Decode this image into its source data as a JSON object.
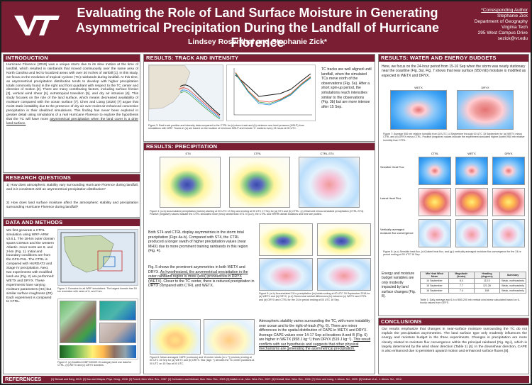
{
  "header": {
    "title_line1": "Evaluating the Role of Land Surface Moisture in Generating",
    "title_line2": "Asymmetrical Precipitation During the Landfall of Hurricane Florence",
    "authors": "Lindsey Rosenthal and Stephanie Zick*",
    "contact": [
      "*Corresponding Author",
      "Stephanie Zick",
      "Department of Geography",
      "Virginia Tech",
      "295 West Campus Drive",
      "sezick@vt.edu"
    ],
    "logo_text": "VT"
  },
  "introduction": {
    "heading": "INTRODUCTION",
    "text": "Hurricane Florence (2018) was a unique storm due to its slow motion at the time of landfall, which resulted in rainbands that moved continuously over the same area of North Carolina and led to localized areas with over 30 inches of rainfall [1]. In this study, we focus on the evolution of tropical cyclone (TC) rainbands during landfall. At this time, an asymmetrical precipitation distribution tends to develop with higher precipitation totals commonly found in the right and front quadrant with respect to the TC center and direction of motion [2]. There are many contributing factors, including surface friction [3], vertical wind shear [4], extratropical transition [5], and dry air intrusion [6]. This study focuses on the role of the land surface, which means decreased availability of moisture compared with the ocean surface [7]. Chen and Liang (2020) [7] argue that moist static instability due to the presence of dry air over moist air enhanced convective precipitation in their idealized simulations. This finding has never been explored in greater detail using simulations of a real Hurricane Florence to explore the hypothesis that the TC will have more",
    "text_underlined": "asymmetrical precipitation when the land cover is a drier land surface."
  },
  "research_questions": {
    "heading": "RESEARCH QUESTIONS",
    "items": [
      "1) How does atmospheric stability vary surrounding Hurricane Florence during landfall, and is it consistent with an asymmetrical precipitation distribution?",
      "2) How does land surface moisture affect the atmospheric stability and precipitation surrounding Hurricane Florence during landfall?"
    ]
  },
  "data_methods": {
    "heading": "DATA AND METHODS",
    "text1": "We first generate a CTRL simulation using WRF-ARW v3.6.1. The 18-km outer domain spans CONUS and the western Atlantic. Inner nests are 6- and 2-km (Fig. 1). Initial and boundary conditions are from the GFS-FNL. The CTRL is compared with HURDAT2 and Stage IV precipitation. Next, two experiments with modified land use (Fig. 2) are performed: WETX and DRYX. These experiments have varying moisture parameters (HS) but similar surface roughness (Z0). Each experiment is compared to CTRL.",
    "fig1_caption": "Figure 1: Domains for all WRF simulations. The largest domain has 18 km resolution with nests of 6- and 2-km.",
    "fig2_caption": "Figure 2: (a) Modified IGBP MODIS 20-category land use data for CTRL, (b) WETX and (c) DRYX domains."
  },
  "track_intensity": {
    "heading": "RESULTS: TRACK AND INTENSITY",
    "text": "TC tracks are well aligned until landfall, when the simulated TCs move north of the observations (Fig. 3a). After a short spin-up period, the simulations reach intensities similar to the observations (Fig. 3b) but are more intense after 15 Sep.",
    "fig3_caption": "Figure 3: Best track position and intensity data compared to the CTRL for (a) storm track and (b) minimum sea level pressure (MSLP) from simulations with WRF. Tracks in (a) are based on the location of minimum MSLP and include 'X' markers every 24 hours at 00 UTC."
  },
  "results_mid": {
    "heading": "RESULTS: PRECIPITATION",
    "panel_labels": [
      "ST4",
      "CTRL",
      "CTRL-ST4"
    ],
    "fig4_caption": "Figure 4: (a-b) Accumulated precipitation (inches) starting at 00 UTC 13 Sep and ending at 00 UTC 17 Sep for (a) ST4 and (b) CTRL. (c) Observed minus simulated precipitation (CTRL-ST4). Positive (negative) values indicate the CTRL simulated more (less) rainfall than ST4. In (a-b), the CTRL and HRRR rainfall locations and time are plotted.",
    "text1": "Both ST4 and CTRL display asymmetries in the storm total precipitation (Figs 4a-b). Compared with ST4, the CTRL produced a longer swath of higher precipitation values (near MHX) due to more prominent training rainbands in this region (Fig. 4).",
    "text2": "Fig. 5 shows the prominent asymmetries in both WETX and DRYX.",
    "text2_ul": "As hypothesized, the asymmetrical precipitation in the outer rainband region is more (less) pronounced in DRYX (WETX).",
    "text2_end": "Closer to the TC center, there is reduced precipitation in DRYX compared with CTRL and WETX.",
    "fig5_caption": "Figure 5: (a-b) Accumulated 24 hr precipitation (in) totals ending at 00 UTC 16 September 2018 for (a) WETX and (b) DRYX. (c-d) Storm-total rainfall differences (in) between (c) WETX and CTRL and (d) DRYX and CTRL for the 24-hr period ending at 00 UTC 16 Sep.",
    "text3": "Atmospheric stability varies surrounding the TC, with more instability over ocean and to the right-of-track (Fig. 6). There are minor differences in the spatial distribution of CAPE in WETX and DRYX. Average CAPE values over 14-17 Sep at locations A and B (Fig. 6) are higher in WETX (958 J kg⁻¹) than DRYX (519 J kg⁻¹).",
    "text3_ul": "This result conflicts with our hypothesis and suggests that other physical mechanisms are generating the asymmetrical precipitation.",
    "fig6_caption": "Figure 6: Mean averaged CAPE (contours) and 10-meter winds (m s⁻¹) (vectors) ending at 00 UTC 15 Sep for (a) WETX and (b) DRYX. Star (sign +) denotes the TC center positions at 00 UTC on 15 Sep at 00 UTC."
  },
  "water_energy": {
    "heading": "RESULTS: WATER AND ENERGY BUDGETS",
    "text": "Here, we focus on the 24-hour period from 15-16 Sep when the storm was nearly stationary near the coastline (Fig. 3a). Fig. 7 shows that near surface (950 mb) moisture is modified as expected in WETX and DRYX.",
    "panel_labels_top": [
      "WETX",
      "DRYX"
    ],
    "fig7_caption": "Figure 7: Average 950 mb relative humidity from 18 UTC 14 September through 00 UTC 15 September for (a) WETX minus CTRL and (b) DRYX minus CTRL. Positive (negative) values indicate the experiment simulated higher (lower) 950 mb relative humidity than CTRL.",
    "col_labels": [
      "CTRL",
      "WETX",
      "DRYX"
    ],
    "row_labels": [
      "Sensible Heat Flux",
      "Latent Heat Flux",
      "Vertically averaged moisture flux convergence"
    ],
    "fig8_caption": "Figure 8: (a-c) Sensible heat flux, (d-f) latent heat flux, and (g-i) vertically averaged moisture flux convergence for the 24-hr period ending at 00 UTC 16 Sep.",
    "text2": "Energy and moisture budget variables are only modestly impacted by land surface changes (Fig. 8).",
    "table": {
      "headers": [
        "Min Heat Wind Mean",
        "Magnitude (knots)",
        "Heading (degrees)",
        "Summary"
      ],
      "rows": [
        [
          "14 September",
          "8.4",
          "113.0",
          "Weak, northeasterly"
        ],
        [
          "15 September",
          "7.7",
          "121.28",
          "Weak, northeasterly"
        ],
        [
          "16 September",
          "7.4",
          "108",
          "Weak, northeasterly"
        ]
      ]
    },
    "table_caption": "Table 1: Daily average and 6-h of 850-200 mb vertical wind shear calculated based on 6-hourly values from GEFS."
  },
  "conclusions": {
    "heading": "CONCLUSIONS",
    "text": "Our results emphasize that changes in near-surface moisture surrounding the TC do not explain the precipitation asymmetries. The land surface type only modestly influences the energy and moisture budget in the three experiments. Changes in precipitation are more closely related to moisture flux convergence within the principal rainband (Fig. 8g-i), which is largely determined by the wind shear direction (Table 1) [4]. In the downshear direction, CAPE is also enhanced due to persistent upward motion and enhanced surface fluxes [8]."
  },
  "references": {
    "heading": "REFERENCES",
    "text": "[1] Stewart and Berg, 2019. [2] Gao and Matyas, Phys. Geog., 2018. [3] Powell, Mon. Wea. Rev., 1987. [4] Corbosiero and Molinari, Mon. Wea. Rev., 2003. [5] Atallah et al., Mon. Wea. Rev., 2007. [6] Kimball, Mon. Wea. Rev., 2006. [7] Chen and Liang, J. Atmos. Sci., 2020. [8] Molinari et al., J. Atmos. Sci., 2012."
  }
}
